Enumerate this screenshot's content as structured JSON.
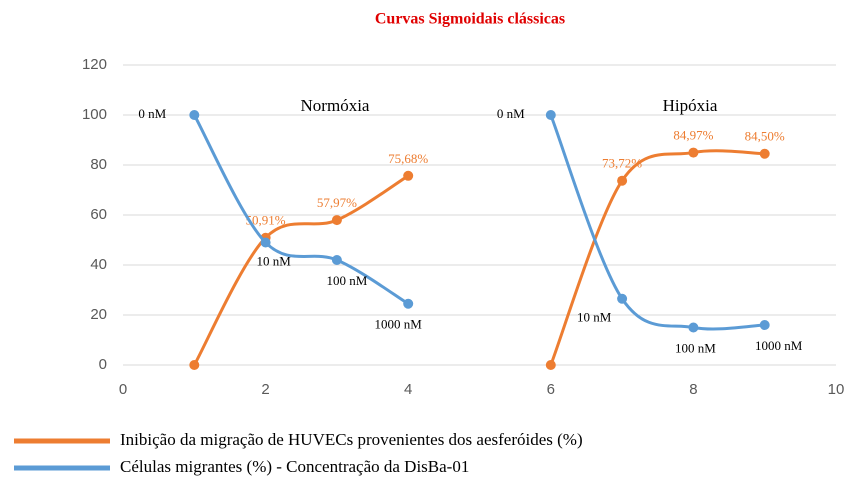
{
  "chart_data": {
    "type": "line",
    "title": "Curvas Sigmoidais clássicas",
    "annotations": [
      "Normóxia",
      "Hipóxia"
    ],
    "x": [
      1,
      2,
      3,
      4,
      5,
      6,
      7,
      8,
      9
    ],
    "series": [
      {
        "name": "Inibição da migração de HUVECs provenientes dos aesferóides (%)",
        "color": "#ed7d31",
        "values": [
          0,
          50.91,
          57.97,
          75.68,
          null,
          0,
          73.72,
          84.97,
          84.5
        ],
        "value_labels": [
          null,
          "50,91%",
          "57,97%",
          "75,68%",
          null,
          null,
          "73,72%",
          "84,97%",
          "84,50%"
        ]
      },
      {
        "name": "Células migrantes (%) - Concentração da DisBa-01",
        "color": "#5b9bd5",
        "values": [
          100,
          49,
          42,
          24.5,
          null,
          100,
          26.5,
          15,
          16
        ],
        "point_labels": [
          "0 nM",
          "10 nM",
          "100 nM",
          "1000 nM",
          null,
          "0 nM",
          "10 nM",
          "100 nM",
          "1000 nM"
        ]
      }
    ],
    "xlim": [
      0,
      10
    ],
    "xticks": [
      0,
      2,
      4,
      6,
      8,
      10
    ],
    "ylim": [
      0,
      120
    ],
    "yticks": [
      0,
      20,
      40,
      60,
      80,
      100,
      120
    ],
    "grid": true
  }
}
